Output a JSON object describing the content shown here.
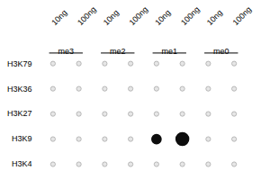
{
  "chart_data": {
    "type": "dot_matrix",
    "rows": [
      "H3K4",
      "H3K9",
      "H3K27",
      "H3K36",
      "H3K79"
    ],
    "categories": [
      "10ng",
      "100ng",
      "10ng",
      "100ng",
      "10ng",
      "100ng",
      "10ng",
      "100ng"
    ],
    "groups": [
      {
        "name": "me3",
        "columns": [
          0,
          1
        ]
      },
      {
        "name": "me2",
        "columns": [
          2,
          3
        ]
      },
      {
        "name": "me1",
        "columns": [
          4,
          5
        ]
      },
      {
        "name": "me0",
        "columns": [
          6,
          7
        ]
      }
    ],
    "cells": [
      {
        "row": 1,
        "column": 4,
        "size": 85
      },
      {
        "row": 1,
        "column": 5,
        "size": 160
      }
    ],
    "color": "#0d0d0d"
  }
}
